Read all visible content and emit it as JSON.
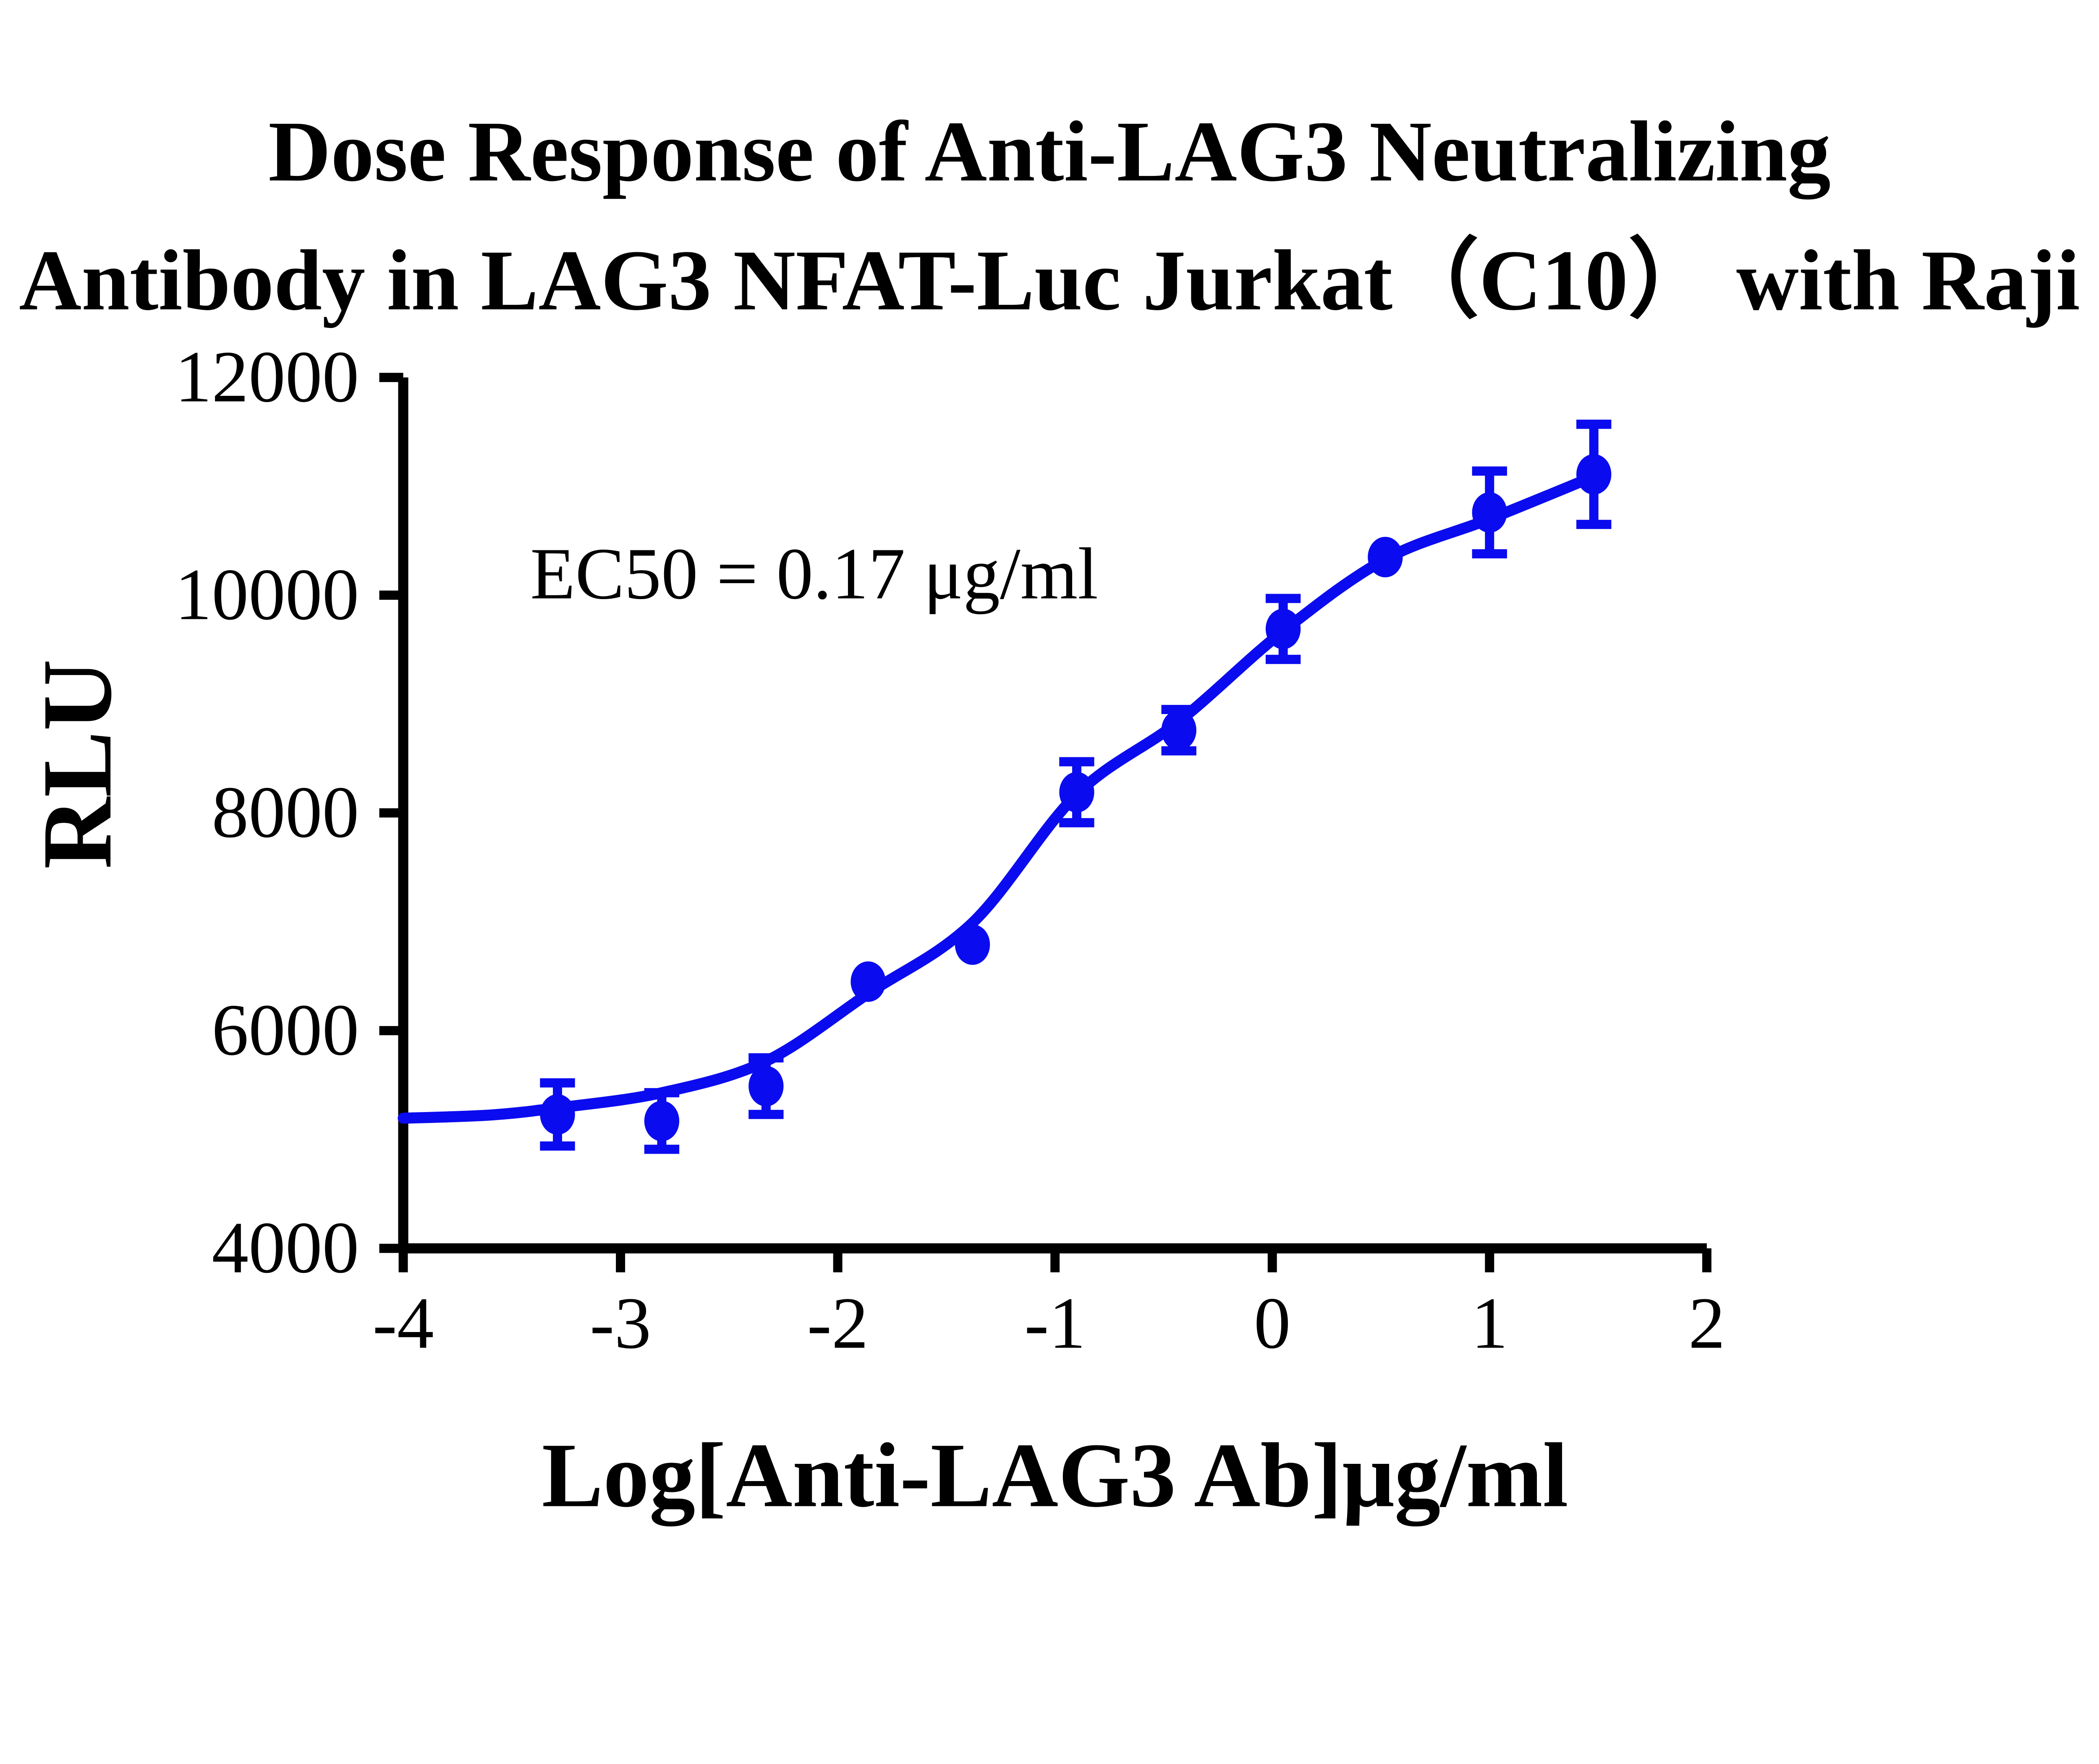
{
  "title": {
    "line1": "Dose Response of Anti-LAG3 Neutralizing",
    "line2": "Antibody in LAG3 NFAT-Luc Jurkat（C10） with Raji"
  },
  "annotation": {
    "ec50": "EC50 = 0.17 μg/ml"
  },
  "colors": {
    "curve": "#0b0bef",
    "axis": "#000000",
    "background": "#ffffff"
  },
  "chart_data": {
    "type": "scatter",
    "title": "Dose Response of Anti-LAG3 Neutralizing Antibody in LAG3 NFAT-Luc Jurkat（C10） with Raji",
    "xlabel": "Log[Anti-LAG3 Ab]μg/ml",
    "ylabel": "RLU",
    "xlim": [
      -4,
      2
    ],
    "ylim": [
      4000,
      12000
    ],
    "x_ticks": [
      -4,
      -3,
      -2,
      -1,
      0,
      1,
      2
    ],
    "y_ticks": [
      4000,
      6000,
      8000,
      10000,
      12000
    ],
    "grid": false,
    "legend": "none",
    "ec50_ugml": 0.17,
    "series": [
      {
        "name": "Anti-LAG3 Ab",
        "marker": "circle",
        "points": [
          {
            "x": -3.29,
            "y": 5230,
            "err": 290
          },
          {
            "x": -2.81,
            "y": 5170,
            "err": 260
          },
          {
            "x": -2.33,
            "y": 5490,
            "err": 260
          },
          {
            "x": -1.86,
            "y": 6450,
            "err": 0
          },
          {
            "x": -1.38,
            "y": 6790,
            "err": 0
          },
          {
            "x": -0.9,
            "y": 8190,
            "err": 280
          },
          {
            "x": -0.43,
            "y": 8760,
            "err": 190
          },
          {
            "x": 0.05,
            "y": 9690,
            "err": 280
          },
          {
            "x": 0.52,
            "y": 10350,
            "err": 0
          },
          {
            "x": 1.0,
            "y": 10760,
            "err": 380
          },
          {
            "x": 1.48,
            "y": 11110,
            "err": 460
          }
        ],
        "fit_curve": [
          [
            -4.0,
            5195
          ],
          [
            -3.6,
            5225
          ],
          [
            -3.29,
            5290
          ],
          [
            -2.81,
            5430
          ],
          [
            -2.33,
            5720
          ],
          [
            -1.86,
            6340
          ],
          [
            -1.38,
            6990
          ],
          [
            -0.9,
            8170
          ],
          [
            -0.43,
            8840
          ],
          [
            0.05,
            9670
          ],
          [
            0.52,
            10330
          ],
          [
            1.0,
            10700
          ],
          [
            1.48,
            11090
          ]
        ]
      }
    ]
  }
}
